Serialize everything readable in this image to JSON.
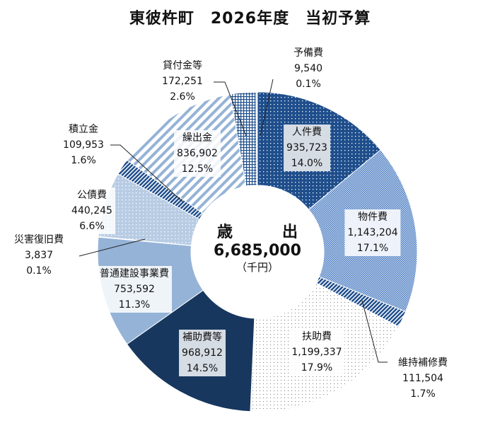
{
  "chart_data": {
    "type": "pie",
    "title": "東彼杵町　2026年度　当初予算",
    "center": {
      "label": "歳　出",
      "total": "6,685,000",
      "unit": "（千円）"
    },
    "categories": [
      "人件費",
      "物件費",
      "維持補修費",
      "扶助費",
      "補助費等",
      "普通建設事業費",
      "災害復旧費",
      "公債費",
      "積立金",
      "繰出金",
      "貸付金等",
      "予備費"
    ],
    "values": [
      935723,
      1143204,
      111504,
      1199337,
      968912,
      753592,
      3837,
      440245,
      109953,
      836902,
      172251,
      9540
    ],
    "value_labels": [
      "935,723",
      "1,143,204",
      "111,504",
      "1,199,337",
      "968,912",
      "753,592",
      "3,837",
      "440,245",
      "109,953",
      "836,902",
      "172,251",
      "9,540"
    ],
    "percent_labels": [
      "14.0%",
      "17.1%",
      "1.7%",
      "17.9%",
      "14.5%",
      "11.3%",
      "0.1%",
      "6.6%",
      "1.6%",
      "12.5%",
      "2.6%",
      "0.1%"
    ],
    "fills": [
      "dots-navy",
      "checker-blue",
      "stripes-navy",
      "dots-gray",
      "#17375e",
      "#95b3d7",
      "#95b3d7",
      "dots-lightblue",
      "stripes-navy",
      "stripes-lightblue",
      "grid-navy",
      "#dbe5f1"
    ],
    "start": "12 o'clock, clockwise"
  }
}
